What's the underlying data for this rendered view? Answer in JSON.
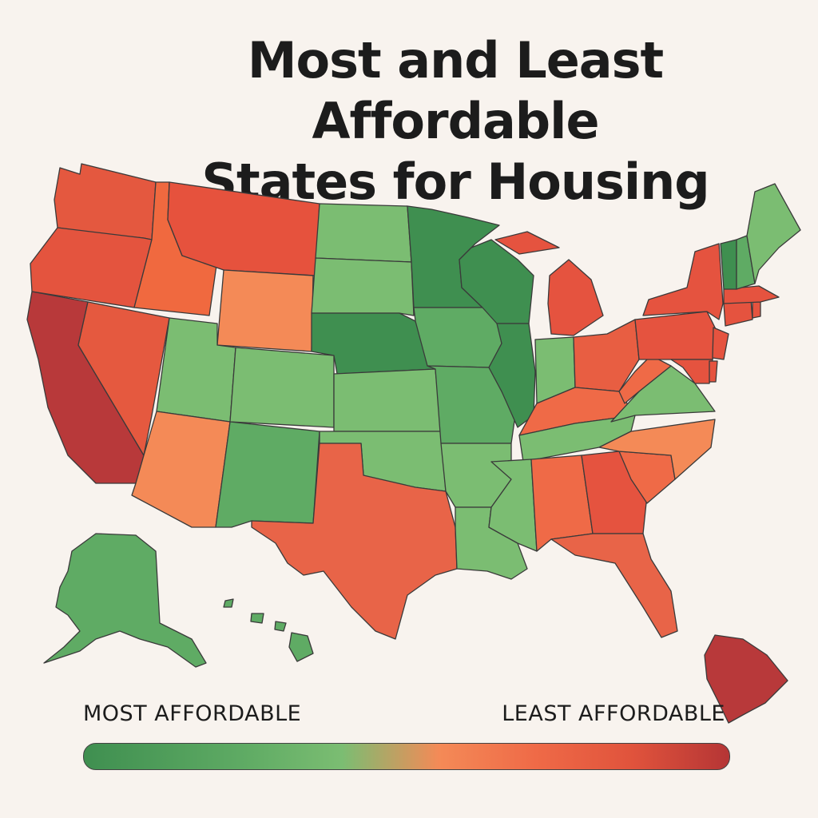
{
  "title": {
    "line1": "Most and Least Affordable",
    "line2": "States for Housing"
  },
  "legend": {
    "left_label": "MOST AFFORDABLE",
    "right_label": "LEAST AFFORDABLE",
    "colors": [
      "#3f8f50",
      "#5fab64",
      "#7bbd72",
      "#f48a57",
      "#ef6a47",
      "#e0533c",
      "#b53535"
    ]
  },
  "palette": {
    "green_dark": "#3f8f50",
    "green_mid": "#5fab64",
    "green_light": "#7bbd72",
    "orange": "#f48a57",
    "red_orange": "#e8593f",
    "red": "#e05642",
    "red_dark": "#b8393a"
  }
}
